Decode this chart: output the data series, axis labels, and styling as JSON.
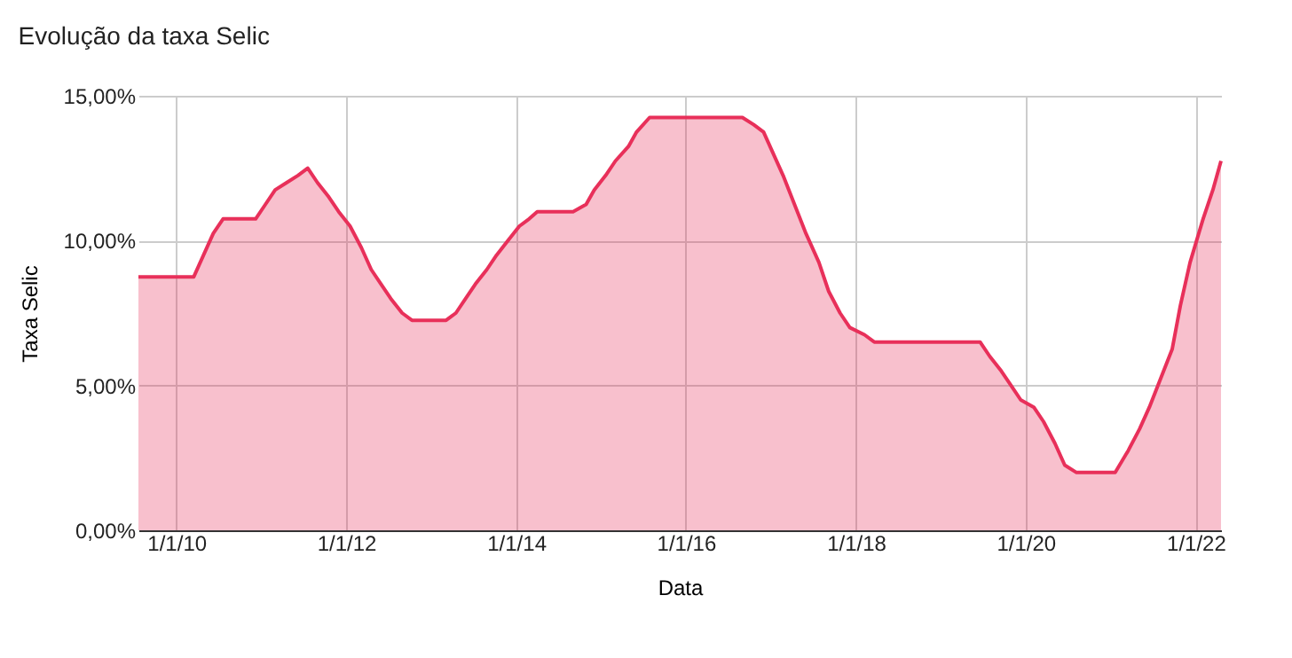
{
  "chart_data": {
    "type": "area",
    "title": "Evolução da taxa Selic",
    "xlabel": "Data",
    "ylabel": "Taxa Selic",
    "x": [
      "2009-07-22",
      "2010-03-17",
      "2010-04-28",
      "2010-06-09",
      "2010-07-21",
      "2010-12-08",
      "2011-01-19",
      "2011-03-02",
      "2011-04-20",
      "2011-06-08",
      "2011-07-20",
      "2011-08-31",
      "2011-10-19",
      "2011-11-30",
      "2012-01-18",
      "2012-03-07",
      "2012-04-18",
      "2012-05-30",
      "2012-07-11",
      "2012-08-29",
      "2012-10-10",
      "2013-03-06",
      "2013-04-17",
      "2013-05-29",
      "2013-07-10",
      "2013-08-28",
      "2013-10-09",
      "2013-11-27",
      "2014-01-15",
      "2014-02-26",
      "2014-04-02",
      "2014-09-03",
      "2014-10-29",
      "2014-12-03",
      "2015-01-21",
      "2015-03-04",
      "2015-04-29",
      "2015-06-03",
      "2015-07-29",
      "2016-08-31",
      "2016-10-19",
      "2016-11-30",
      "2017-01-11",
      "2017-02-22",
      "2017-04-12",
      "2017-05-31",
      "2017-07-26",
      "2017-09-06",
      "2017-10-25",
      "2017-12-06",
      "2018-02-07",
      "2018-03-21",
      "2019-06-19",
      "2019-07-31",
      "2019-09-18",
      "2019-10-30",
      "2019-12-11",
      "2020-02-05",
      "2020-03-18",
      "2020-05-06",
      "2020-06-17",
      "2020-08-05",
      "2021-01-20",
      "2021-03-17",
      "2021-05-05",
      "2021-06-16",
      "2021-08-04",
      "2021-09-22",
      "2021-10-27",
      "2021-12-08",
      "2022-02-02",
      "2022-03-16",
      "2022-04-20"
    ],
    "series": [
      {
        "color": "#e8305a",
        "values": [
          8.75,
          8.75,
          9.5,
          10.25,
          10.75,
          10.75,
          11.25,
          11.75,
          12.0,
          12.25,
          12.5,
          12.0,
          11.5,
          11.0,
          10.5,
          9.75,
          9.0,
          8.5,
          8.0,
          7.5,
          7.25,
          7.25,
          7.5,
          8.0,
          8.5,
          9.0,
          9.5,
          10.0,
          10.5,
          10.75,
          11.0,
          11.0,
          11.25,
          11.75,
          12.25,
          12.75,
          13.25,
          13.75,
          14.25,
          14.25,
          14.0,
          13.75,
          13.0,
          12.25,
          11.25,
          10.25,
          9.25,
          8.25,
          7.5,
          7.0,
          6.75,
          6.5,
          6.5,
          6.0,
          5.5,
          5.0,
          4.5,
          4.25,
          3.75,
          3.0,
          2.25,
          2.0,
          2.0,
          2.75,
          3.5,
          4.25,
          5.25,
          6.25,
          7.75,
          9.25,
          10.75,
          11.75,
          12.75
        ]
      }
    ],
    "xlim": [
      "2009-07-22",
      "2022-04-20"
    ],
    "xticks": [
      {
        "value": "2010-01-01",
        "label": "1/1/10"
      },
      {
        "value": "2012-01-01",
        "label": "1/1/12"
      },
      {
        "value": "2014-01-01",
        "label": "1/1/14"
      },
      {
        "value": "2016-01-01",
        "label": "1/1/16"
      },
      {
        "value": "2018-01-01",
        "label": "1/1/18"
      },
      {
        "value": "2020-01-01",
        "label": "1/1/20"
      },
      {
        "value": "2022-01-01",
        "label": "1/1/22"
      }
    ],
    "ylim": [
      0,
      15
    ],
    "yticks": [
      {
        "value": 0,
        "label": "0,00%"
      },
      {
        "value": 5,
        "label": "5,00%"
      },
      {
        "value": 10,
        "label": "10,00%"
      },
      {
        "value": 15,
        "label": "15,00%"
      }
    ],
    "grid": true,
    "legend": false,
    "line_style": "solid",
    "marker": "none"
  }
}
